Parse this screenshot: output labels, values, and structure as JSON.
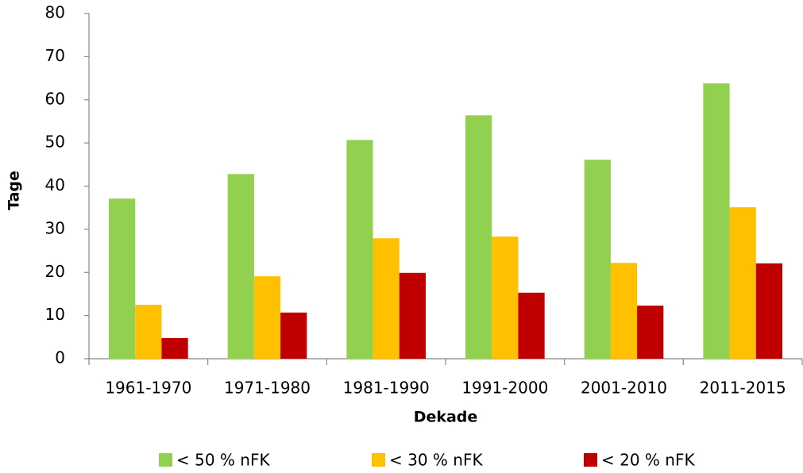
{
  "chart_data": {
    "type": "bar",
    "x_label": "Dekade",
    "y_label": "Tage",
    "categories": [
      "1961-1970",
      "1971-1980",
      "1981-1990",
      "1991-2000",
      "2001-2010",
      "2011-2015"
    ],
    "series": [
      {
        "name": "< 50 % nFK",
        "color": "#92d050",
        "values": [
          37.1,
          42.8,
          50.7,
          56.4,
          46.1,
          63.8
        ]
      },
      {
        "name": "< 30 % nFK",
        "color": "#ffc000",
        "values": [
          12.5,
          19.1,
          27.9,
          28.3,
          22.2,
          35.1
        ]
      },
      {
        "name": "< 20 % nFK",
        "color": "#c00000",
        "values": [
          4.8,
          10.7,
          19.9,
          15.3,
          12.3,
          22.1
        ]
      }
    ],
    "ylim": [
      0,
      80
    ],
    "yticks": [
      0,
      10,
      20,
      30,
      40,
      50,
      60,
      70,
      80
    ],
    "legend": "bottom"
  }
}
